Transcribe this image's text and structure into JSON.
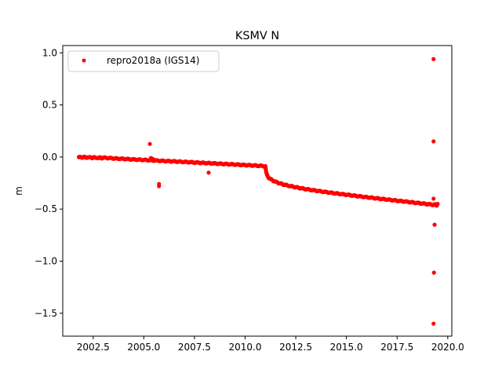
{
  "chart_data": {
    "type": "scatter",
    "title": "KSMV N",
    "xlabel": "",
    "ylabel": "m",
    "xlim": [
      2001.0,
      2020.2
    ],
    "ylim": [
      -1.72,
      1.07
    ],
    "x_ticks": [
      2002.5,
      2005.0,
      2007.5,
      2010.0,
      2012.5,
      2015.0,
      2017.5,
      2020.0
    ],
    "x_tick_labels": [
      "2002.5",
      "2005.0",
      "2007.5",
      "2010.0",
      "2012.5",
      "2015.0",
      "2017.5",
      "2020.0"
    ],
    "y_ticks": [
      1.0,
      0.5,
      0.0,
      -0.5,
      -1.0,
      -1.5
    ],
    "y_tick_labels": [
      "1.0",
      "0.5",
      "0.0",
      "−0.5",
      "−1.0",
      "−1.5"
    ],
    "grid": false,
    "legend_position": "top-left",
    "series": [
      {
        "name": "repro2018a (IGS14)",
        "color": "#ff0000",
        "marker": "circle",
        "trend": [
          [
            1.8,
            0.0
          ],
          [
            1.8,
            -0.005
          ],
          [
            1.85,
            -0.002
          ],
          [
            1.9,
            0.0
          ],
          [
            1.95,
            -0.004
          ],
          [
            2.0,
            -0.003
          ],
          [
            2.05,
            0.0
          ],
          [
            2.1,
            -0.002
          ],
          [
            2.15,
            -0.006
          ],
          [
            2.2,
            -0.004
          ],
          [
            2.25,
            -0.001
          ],
          [
            2.3,
            -0.007
          ],
          [
            2.35,
            -0.005
          ],
          [
            2.4,
            -0.002
          ],
          [
            2.45,
            -0.008
          ],
          [
            2.5,
            -0.006
          ],
          [
            2.55,
            -0.003
          ],
          [
            2.6,
            -0.009
          ],
          [
            2.65,
            -0.007
          ],
          [
            2.7,
            -0.004
          ],
          [
            2.75,
            -0.01
          ],
          [
            2.8,
            -0.008
          ],
          [
            2.85,
            -0.005
          ],
          [
            2.9,
            -0.011
          ],
          [
            2.95,
            -0.009
          ],
          [
            3.0,
            -0.006
          ],
          [
            3.5,
            -0.013
          ],
          [
            4.0,
            -0.018
          ],
          [
            4.5,
            -0.023
          ],
          [
            5.0,
            -0.028
          ],
          [
            5.5,
            -0.033
          ],
          [
            6.0,
            -0.038
          ],
          [
            6.5,
            -0.042
          ],
          [
            7.0,
            -0.047
          ],
          [
            7.5,
            -0.052
          ],
          [
            8.0,
            -0.057
          ],
          [
            8.5,
            -0.062
          ],
          [
            9.0,
            -0.067
          ],
          [
            9.5,
            -0.072
          ],
          [
            10.0,
            -0.077
          ],
          [
            10.5,
            -0.082
          ],
          [
            11.0,
            -0.088
          ],
          [
            11.02,
            -0.125
          ],
          [
            11.05,
            -0.155
          ],
          [
            11.1,
            -0.18
          ],
          [
            11.15,
            -0.195
          ],
          [
            11.2,
            -0.205
          ],
          [
            11.3,
            -0.218
          ],
          [
            11.4,
            -0.228
          ],
          [
            11.5,
            -0.237
          ],
          [
            11.6,
            -0.245
          ],
          [
            11.7,
            -0.252
          ],
          [
            11.8,
            -0.258
          ],
          [
            11.9,
            -0.264
          ],
          [
            12.0,
            -0.269
          ],
          [
            12.2,
            -0.278
          ],
          [
            12.4,
            -0.286
          ],
          [
            12.6,
            -0.294
          ],
          [
            12.8,
            -0.301
          ],
          [
            13.0,
            -0.308
          ],
          [
            13.5,
            -0.323
          ],
          [
            14.0,
            -0.337
          ],
          [
            14.5,
            -0.35
          ],
          [
            15.0,
            -0.362
          ],
          [
            15.5,
            -0.374
          ],
          [
            16.0,
            -0.386
          ],
          [
            16.5,
            -0.397
          ],
          [
            17.0,
            -0.408
          ],
          [
            17.5,
            -0.419
          ],
          [
            18.0,
            -0.43
          ],
          [
            18.5,
            -0.441
          ],
          [
            19.0,
            -0.452
          ],
          [
            19.2,
            -0.456
          ],
          [
            19.3,
            -0.46
          ],
          [
            19.4,
            -0.455
          ],
          [
            19.45,
            -0.465
          ],
          [
            19.5,
            -0.45
          ]
        ],
        "outliers": [
          [
            5.3,
            0.125
          ],
          [
            5.35,
            -0.01
          ],
          [
            5.4,
            -0.015
          ],
          [
            5.45,
            -0.02
          ],
          [
            5.5,
            -0.025
          ],
          [
            5.75,
            -0.26
          ],
          [
            5.75,
            -0.28
          ],
          [
            8.2,
            -0.15
          ],
          [
            11.0,
            -0.1
          ],
          [
            11.02,
            -0.11
          ],
          [
            19.3,
            0.94
          ],
          [
            19.3,
            0.15
          ],
          [
            19.3,
            -0.4
          ],
          [
            19.35,
            -0.65
          ],
          [
            19.32,
            -1.11
          ],
          [
            19.3,
            -1.6
          ]
        ]
      }
    ]
  }
}
